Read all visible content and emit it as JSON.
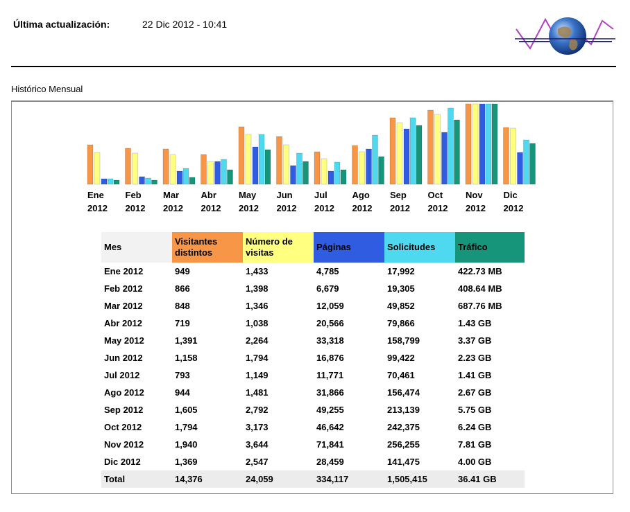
{
  "header": {
    "updated_label": "Última actualización:",
    "updated_value": "22 Dic 2012 - 10:41",
    "logo_icon": "globe-graph-logo-icon"
  },
  "section_title": "Histórico Mensual",
  "chart_data": {
    "type": "bar",
    "categories": [
      [
        "Ene",
        "2012"
      ],
      [
        "Feb",
        "2012"
      ],
      [
        "Mar",
        "2012"
      ],
      [
        "Abr",
        "2012"
      ],
      [
        "May",
        "2012"
      ],
      [
        "Jun",
        "2012"
      ],
      [
        "Jul",
        "2012"
      ],
      [
        "Ago",
        "2012"
      ],
      [
        "Sep",
        "2012"
      ],
      [
        "Oct",
        "2012"
      ],
      [
        "Nov",
        "2012"
      ],
      [
        "Dic",
        "2012"
      ]
    ],
    "series": [
      {
        "name": "Visitantes distintos",
        "color": "#f79646",
        "values": [
          949,
          866,
          848,
          719,
          1391,
          1158,
          793,
          944,
          1605,
          1794,
          1940,
          1369
        ]
      },
      {
        "name": "Número de visitas",
        "color": "#ffff80",
        "values": [
          1433,
          1398,
          1346,
          1038,
          2264,
          1794,
          1149,
          1481,
          2792,
          3173,
          3644,
          2547
        ]
      },
      {
        "name": "Páginas",
        "color": "#2f5ce0",
        "values": [
          4785,
          6679,
          12059,
          20566,
          33318,
          16876,
          11771,
          31866,
          49255,
          46642,
          71841,
          28459
        ]
      },
      {
        "name": "Solicitudes",
        "color": "#4fd9f0",
        "values": [
          17992,
          19305,
          49852,
          79866,
          158799,
          99422,
          70461,
          156474,
          213139,
          242375,
          256255,
          141475
        ]
      },
      {
        "name": "Tráfico",
        "color": "#17957a",
        "values": [
          422.73,
          408.64,
          687.76,
          1464.3,
          3450.9,
          2283.5,
          1443.8,
          2734.1,
          5888,
          6389.8,
          7997.4,
          4096
        ],
        "unit": "MB"
      }
    ]
  },
  "table": {
    "headers": [
      "Mes",
      "Visitantes distintos",
      "Número de visitas",
      "Páginas",
      "Solicitudes",
      "Tráfico"
    ],
    "header_colors": [
      "#f2f2f2",
      "#f79646",
      "#ffff80",
      "#2f5ce0",
      "#4fd9f0",
      "#17957a"
    ],
    "rows": [
      [
        "Ene 2012",
        "949",
        "1,433",
        "4,785",
        "17,992",
        "422.73 MB"
      ],
      [
        "Feb 2012",
        "866",
        "1,398",
        "6,679",
        "19,305",
        "408.64 MB"
      ],
      [
        "Mar 2012",
        "848",
        "1,346",
        "12,059",
        "49,852",
        "687.76 MB"
      ],
      [
        "Abr 2012",
        "719",
        "1,038",
        "20,566",
        "79,866",
        "1.43 GB"
      ],
      [
        "May 2012",
        "1,391",
        "2,264",
        "33,318",
        "158,799",
        "3.37 GB"
      ],
      [
        "Jun 2012",
        "1,158",
        "1,794",
        "16,876",
        "99,422",
        "2.23 GB"
      ],
      [
        "Jul 2012",
        "793",
        "1,149",
        "11,771",
        "70,461",
        "1.41 GB"
      ],
      [
        "Ago 2012",
        "944",
        "1,481",
        "31,866",
        "156,474",
        "2.67 GB"
      ],
      [
        "Sep 2012",
        "1,605",
        "2,792",
        "49,255",
        "213,139",
        "5.75 GB"
      ],
      [
        "Oct 2012",
        "1,794",
        "3,173",
        "46,642",
        "242,375",
        "6.24 GB"
      ],
      [
        "Nov 2012",
        "1,940",
        "3,644",
        "71,841",
        "256,255",
        "7.81 GB"
      ],
      [
        "Dic 2012",
        "1,369",
        "2,547",
        "28,459",
        "141,475",
        "4.00 GB"
      ]
    ],
    "total": [
      "Total",
      "14,376",
      "24,059",
      "334,117",
      "1,505,415",
      "36.41 GB"
    ]
  }
}
